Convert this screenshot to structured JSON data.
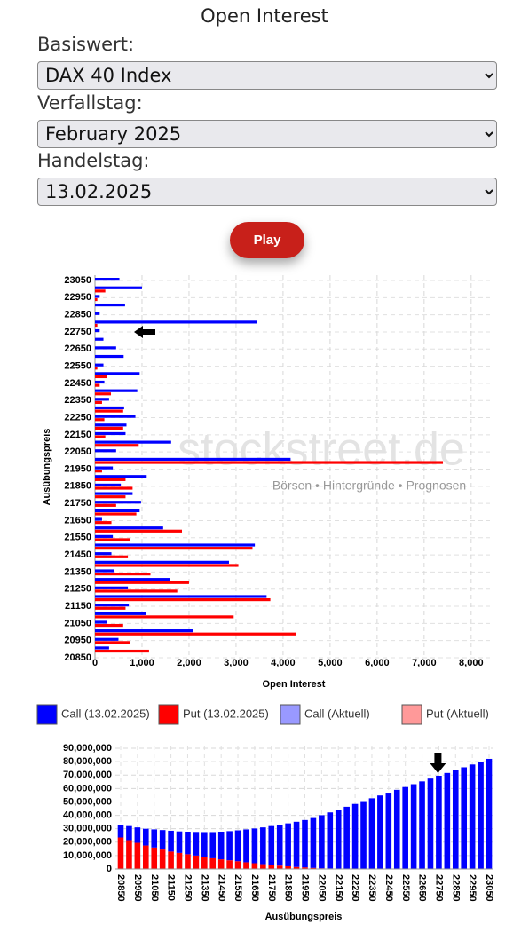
{
  "header": {
    "title": "Open Interest"
  },
  "form": {
    "fields": [
      {
        "label": "Basiswert:",
        "value": "DAX 40 Index"
      },
      {
        "label": "Verfallstag:",
        "value": "February 2025"
      },
      {
        "label": "Handelstag:",
        "value": "13.02.2025"
      }
    ],
    "button": "Play"
  },
  "chart_data": [
    {
      "type": "hbar",
      "xlabel": "Open Interest",
      "ylabel": "Ausübungspreis",
      "categories": [
        "23050",
        null,
        "22950",
        null,
        "22850",
        null,
        "22750",
        null,
        "22650",
        null,
        "22550",
        null,
        "22450",
        null,
        "22350",
        null,
        "22250",
        null,
        "22150",
        null,
        "22050",
        null,
        "21950",
        null,
        "21850",
        null,
        "21750",
        null,
        "21650",
        null,
        "21550",
        null,
        "21450",
        null,
        "21350",
        null,
        "21250",
        null,
        "21150",
        null,
        "21050",
        null,
        "20950",
        null,
        "20850"
      ],
      "series": [
        {
          "name": "Call (13.02.2025)",
          "color": "#0000ff",
          "values": [
            520,
            1000,
            100,
            640,
            100,
            3450,
            100,
            180,
            450,
            610,
            180,
            950,
            200,
            900,
            300,
            620,
            860,
            670,
            650,
            1620,
            450,
            4160,
            380,
            1100,
            550,
            800,
            980,
            950,
            150,
            1450,
            380,
            3400,
            350,
            2850,
            400,
            1600,
            700,
            3650,
            720,
            1080,
            250,
            2080,
            500,
            300,
            0
          ]
        },
        {
          "name": "Put (13.02.2025)",
          "color": "#ff0000",
          "values": [
            0,
            220,
            50,
            0,
            0,
            50,
            0,
            0,
            0,
            0,
            50,
            250,
            100,
            340,
            150,
            600,
            200,
            600,
            220,
            930,
            0,
            7400,
            150,
            650,
            800,
            650,
            450,
            880,
            350,
            1850,
            750,
            3350,
            700,
            3050,
            1180,
            2000,
            1750,
            3730,
            650,
            2950,
            600,
            4270,
            750,
            1150,
            0
          ]
        }
      ],
      "extra_legend": [
        {
          "name": "Call (Aktuell)",
          "color": "#9999ff"
        },
        {
          "name": "Put (Aktuell)",
          "color": "#ff9999"
        }
      ],
      "xlim": [
        0,
        8400
      ],
      "xticks": [
        0,
        {
          "value": 1000,
          "label": "1,000"
        },
        {
          "value": 2000,
          "label": "2,000"
        },
        {
          "value": 3000,
          "label": "3,000"
        },
        {
          "value": 4000,
          "label": "4,000"
        },
        {
          "value": 5000,
          "label": "5,000"
        },
        {
          "value": 6000,
          "label": "6,000"
        },
        {
          "value": 7000,
          "label": "7,000"
        },
        {
          "value": 8000,
          "label": "8,000"
        }
      ],
      "grid": true,
      "marker": 22750,
      "watermark": [
        "stockstreet.de",
        "Börsen • Hintergründe • Prognosen"
      ]
    },
    {
      "type": "stacked_bar",
      "xlabel": "Ausübungspreis",
      "categories": [
        "20850",
        null,
        "20950",
        null,
        "21050",
        null,
        "21150",
        null,
        "21250",
        null,
        "21350",
        null,
        "21450",
        null,
        "21550",
        null,
        "21650",
        null,
        "21750",
        null,
        "21850",
        null,
        "21950",
        null,
        "22050",
        null,
        "22150",
        null,
        "22250",
        null,
        "22350",
        null,
        "22450",
        null,
        "22550",
        null,
        "22650",
        null,
        "22750",
        null,
        "22850",
        null,
        "22950",
        null,
        "23050"
      ],
      "series": [
        {
          "color": "#ff0000",
          "values": [
            23500000,
            21500000,
            19500000,
            17500000,
            16000000,
            14500000,
            13000000,
            12000000,
            11000000,
            10000000,
            9000000,
            8000000,
            7200000,
            6500000,
            5800000,
            5000000,
            4300000,
            3600000,
            3000000,
            2500000,
            2000000,
            1500000,
            1200000,
            800000,
            500000,
            400000,
            300000,
            200000,
            100000,
            0,
            0,
            0,
            0,
            0,
            0,
            0,
            0,
            0,
            0,
            0,
            0,
            0,
            0,
            0,
            0
          ]
        },
        {
          "color": "#0000ff",
          "values": [
            9500000,
            10500000,
            11500000,
            12500000,
            13500000,
            14500000,
            15500000,
            16000000,
            16800000,
            17600000,
            18500000,
            19500000,
            20600000,
            21700000,
            23000000,
            24500000,
            25900000,
            27400000,
            29000000,
            30500000,
            32000000,
            33700000,
            35300000,
            37200000,
            39600000,
            41800000,
            44000000,
            46200000,
            48400000,
            50600000,
            52700000,
            54800000,
            56900000,
            59000000,
            61100000,
            63200000,
            65300000,
            67400000,
            69500000,
            71600000,
            73700000,
            75800000,
            77900000,
            80000000,
            82100000
          ]
        }
      ],
      "ylim": [
        0,
        92000000
      ],
      "yticks": [
        0,
        {
          "value": 10000000,
          "label": "10,000,000"
        },
        {
          "value": 20000000,
          "label": "20,000,000"
        },
        {
          "value": 30000000,
          "label": "30,000,000"
        },
        {
          "value": 40000000,
          "label": "40,000,000"
        },
        {
          "value": 50000000,
          "label": "50,000,000"
        },
        {
          "value": 60000000,
          "label": "60,000,000"
        },
        {
          "value": 70000000,
          "label": "70,000,000"
        },
        {
          "value": 80000000,
          "label": "80,000,000"
        },
        {
          "value": 90000000,
          "label": "90,000,000"
        }
      ],
      "grid": true,
      "marker": 22750
    }
  ]
}
